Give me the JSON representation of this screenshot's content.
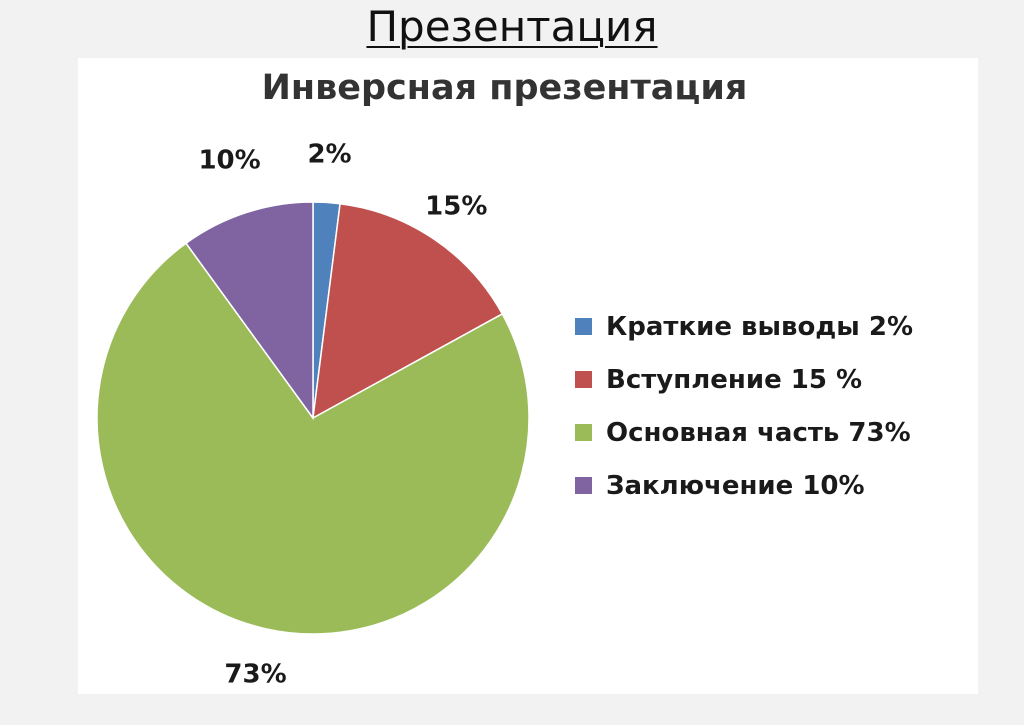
{
  "page": {
    "title": "Презентация"
  },
  "chart_data": {
    "type": "pie",
    "title": "Инверсная презентация",
    "categories": [
      "Краткие выводы",
      "Вступление",
      "Основная часть",
      "Заключение"
    ],
    "values": [
      2,
      15,
      73,
      10
    ],
    "data_labels": [
      "2%",
      "15%",
      "73%",
      "10%"
    ],
    "colors": [
      "#4f81bd",
      "#c0504d",
      "#9bbb59",
      "#8064a2"
    ],
    "legend": {
      "position": "right",
      "entries": [
        "Краткие выводы 2%",
        "Вступление 15 %",
        "Основная часть 73%",
        "Заключение 10%"
      ]
    }
  }
}
